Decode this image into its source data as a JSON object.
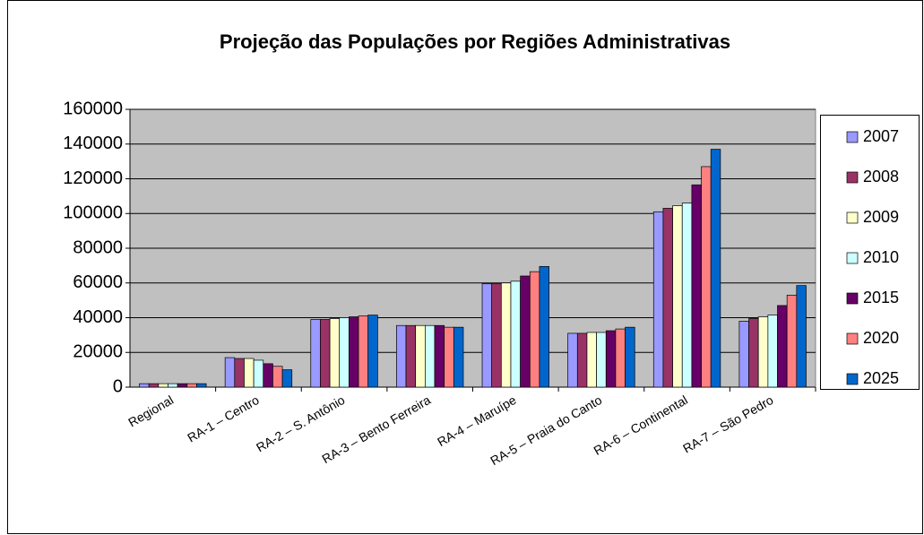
{
  "chart_data": {
    "type": "bar",
    "title": "Projeção das Populações por Regiões Administrativas",
    "categories": [
      "Regional",
      "RA-1 – Centro",
      "RA-2 – S. Antônio",
      "RA-3 – Bento Ferreira",
      "RA-4 – Maruípe",
      "RA-5 – Praia do Canto",
      "RA-6 – Continental",
      "RA-7 – São Pedro"
    ],
    "series": [
      {
        "name": "2007",
        "color": "#9999ff",
        "values": [
          2000,
          17000,
          39000,
          35500,
          59500,
          31000,
          101000,
          38000
        ]
      },
      {
        "name": "2008",
        "color": "#993366",
        "values": [
          2000,
          16500,
          39000,
          35500,
          59500,
          31000,
          103000,
          39500
        ]
      },
      {
        "name": "2009",
        "color": "#ffffcc",
        "values": [
          2000,
          16500,
          39500,
          35500,
          60000,
          31500,
          104500,
          40500
        ]
      },
      {
        "name": "2010",
        "color": "#ccffff",
        "values": [
          2000,
          15500,
          40000,
          35500,
          61000,
          31500,
          106000,
          41500
        ]
      },
      {
        "name": "2015",
        "color": "#660066",
        "values": [
          2000,
          13500,
          40500,
          35500,
          64000,
          32500,
          116500,
          47000
        ]
      },
      {
        "name": "2020",
        "color": "#ff8080",
        "values": [
          2000,
          12000,
          41000,
          34500,
          66500,
          33500,
          127000,
          53000
        ]
      },
      {
        "name": "2025",
        "color": "#0066cc",
        "values": [
          2000,
          10000,
          41500,
          34500,
          69500,
          34500,
          137000,
          58500
        ]
      }
    ],
    "ylim": [
      0,
      160000
    ],
    "yticks": [
      0,
      20000,
      40000,
      60000,
      80000,
      100000,
      120000,
      140000,
      160000
    ],
    "grid": true,
    "legend": "right"
  }
}
